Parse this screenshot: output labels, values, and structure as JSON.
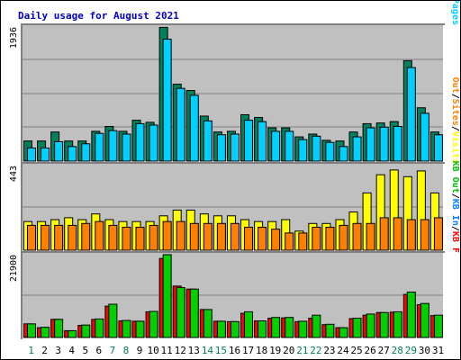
{
  "chart_data": {
    "type": "bar",
    "title": "Daily usage for August 2021",
    "categories": [
      "1",
      "2",
      "3",
      "4",
      "5",
      "6",
      "7",
      "8",
      "9",
      "10",
      "11",
      "12",
      "13",
      "14",
      "15",
      "16",
      "17",
      "18",
      "19",
      "20",
      "21",
      "22",
      "23",
      "24",
      "25",
      "26",
      "27",
      "28",
      "29",
      "30",
      "31"
    ],
    "weekend_days": [
      "1",
      "7",
      "8",
      "14",
      "15",
      "21",
      "22",
      "28",
      "29"
    ],
    "panels": [
      {
        "name": "top",
        "max_label": "1936",
        "ymax": 1936,
        "legend": [
          {
            "text": "Pages",
            "color": "#00d0ff"
          },
          {
            "text": "Files",
            "color": "#0080ff"
          },
          {
            "text": "Hits",
            "color": "#00805c"
          }
        ],
        "series": [
          {
            "name": "Hits",
            "color": "#00805c",
            "values": [
              290,
              290,
              420,
              290,
              290,
              430,
              500,
              430,
              590,
              560,
              1930,
              1110,
              1020,
              650,
              420,
              430,
              670,
              630,
              480,
              480,
              350,
              390,
              300,
              290,
              420,
              540,
              550,
              570,
              1450,
              770,
              420
            ]
          },
          {
            "name": "Pages",
            "color": "#00d0ff",
            "values": [
              190,
              190,
              280,
              210,
              250,
              400,
              440,
              390,
              540,
              520,
              1760,
              1050,
              950,
              580,
              380,
              390,
              590,
              570,
              430,
              430,
              310,
              360,
              270,
              210,
              350,
              480,
              490,
              500,
              1350,
              690,
              380
            ]
          }
        ]
      },
      {
        "name": "middle",
        "max_label": "443",
        "ymax": 443,
        "legend": [
          {
            "text": "Visits",
            "color": "#ffff00"
          },
          {
            "text": "/",
            "color": "#000000"
          },
          {
            "text": "Sites",
            "color": "#ff8000"
          },
          {
            "text": "Out",
            "color": "#ff8000"
          }
        ],
        "series": [
          {
            "name": "Visits",
            "color": "#ffff00",
            "values": [
              150,
              150,
              160,
              170,
              160,
              190,
              160,
              150,
              150,
              150,
              180,
              210,
              210,
              190,
              180,
              180,
              160,
              150,
              150,
              160,
              100,
              140,
              140,
              160,
              200,
              300,
              395,
              420,
              385,
              415,
              300
            ]
          },
          {
            "name": "Sites",
            "color": "#ff8000",
            "values": [
              130,
              130,
              130,
              130,
              140,
              150,
              130,
              120,
              120,
              130,
              150,
              150,
              140,
              140,
              140,
              140,
              120,
              120,
              110,
              90,
              90,
              120,
              120,
              130,
              140,
              140,
              170,
              170,
              160,
              160,
              170
            ]
          }
        ]
      },
      {
        "name": "bottom",
        "max_label": "21900",
        "ymax": 21900,
        "legend": [
          {
            "text": "KB F",
            "color": "#ff0000"
          },
          {
            "text": "KB In",
            "color": "#0080ff"
          },
          {
            "text": "KB Out",
            "color": "#00c000"
          }
        ],
        "series": [
          {
            "name": "KB F",
            "color": "#ff0000",
            "values": [
              3600,
              2600,
              4800,
              1800,
              3200,
              4800,
              8300,
              4400,
              4300,
              6800,
              20900,
              13600,
              12800,
              7400,
              4300,
              4200,
              6400,
              4400,
              5100,
              5200,
              4200,
              5100,
              3400,
              2600,
              5000,
              5900,
              6600,
              6700,
              11400,
              8700,
              5800
            ]
          },
          {
            "name": "KB Out",
            "color": "#00d000",
            "values": [
              3600,
              2700,
              4800,
              1800,
              3300,
              4900,
              8800,
              4500,
              4300,
              6900,
              21900,
              13200,
              12800,
              7400,
              4300,
              4200,
              6800,
              4400,
              5300,
              5300,
              4300,
              5900,
              3500,
              2600,
              5100,
              6200,
              6600,
              6800,
              12000,
              9000,
              5900
            ]
          }
        ]
      }
    ],
    "grid": true
  }
}
